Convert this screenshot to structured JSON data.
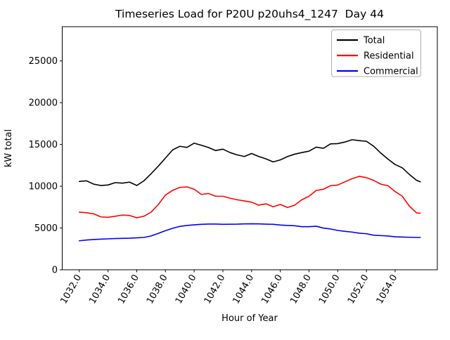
{
  "figure": {
    "background": "#ffffff"
  },
  "chart_data": {
    "type": "line",
    "title": "Timeseries Load for P20U p20uhs4_1247  Day 44",
    "xlabel": "Hour of Year",
    "ylabel": "kW total",
    "grid": false,
    "legend_position": "upper right",
    "xlim": [
      1030.81,
      1056.94
    ],
    "ylim": [
      0,
      29100
    ],
    "x_ticks": [
      1032,
      1034,
      1036,
      1038,
      1040,
      1042,
      1044,
      1046,
      1048,
      1050,
      1052,
      1054
    ],
    "x_tick_labels": [
      "1032.0",
      "1034.0",
      "1036.0",
      "1038.0",
      "1040.0",
      "1042.0",
      "1044.0",
      "1046.0",
      "1048.0",
      "1050.0",
      "1052.0",
      "1054.0"
    ],
    "x_tick_rotation": 60,
    "y_ticks": [
      0,
      5000,
      10000,
      15000,
      20000,
      25000
    ],
    "y_tick_labels": [
      "0",
      "5000",
      "10000",
      "15000",
      "20000",
      "25000"
    ],
    "x": [
      1032.0,
      1032.5,
      1033.0,
      1033.5,
      1034.0,
      1034.5,
      1035.0,
      1035.5,
      1036.0,
      1036.5,
      1037.0,
      1037.5,
      1038.0,
      1038.5,
      1039.0,
      1039.5,
      1040.0,
      1040.5,
      1041.0,
      1041.5,
      1042.0,
      1042.5,
      1043.0,
      1043.5,
      1044.0,
      1044.5,
      1045.0,
      1045.5,
      1046.0,
      1046.5,
      1047.0,
      1047.5,
      1048.0,
      1048.5,
      1049.0,
      1049.5,
      1050.0,
      1050.5,
      1051.0,
      1051.5,
      1052.0,
      1052.5,
      1053.0,
      1053.5,
      1054.0,
      1054.5,
      1055.0,
      1055.5,
      1055.75
    ],
    "series": [
      {
        "name": "Total",
        "color": "#000000",
        "values": [
          10570,
          10650,
          10250,
          10090,
          10150,
          10430,
          10370,
          10490,
          10090,
          10650,
          11500,
          12400,
          13370,
          14350,
          14780,
          14650,
          15150,
          14910,
          14630,
          14270,
          14440,
          14030,
          13750,
          13560,
          13920,
          13560,
          13280,
          12910,
          13150,
          13550,
          13840,
          14030,
          14200,
          14680,
          14540,
          15070,
          15100,
          15290,
          15570,
          15460,
          15380,
          14800,
          13970,
          13250,
          12600,
          12200,
          11400,
          10700,
          10530
        ]
      },
      {
        "name": "Residential",
        "color": "#ff0000",
        "values": [
          6890,
          6830,
          6700,
          6330,
          6280,
          6410,
          6550,
          6500,
          6220,
          6410,
          6890,
          7800,
          8940,
          9500,
          9860,
          9920,
          9640,
          9020,
          9130,
          8800,
          8800,
          8570,
          8380,
          8240,
          8090,
          7730,
          7900,
          7540,
          7820,
          7450,
          7730,
          8380,
          8800,
          9490,
          9640,
          10060,
          10140,
          10530,
          10900,
          11180,
          11030,
          10700,
          10250,
          10060,
          9360,
          8800,
          7600,
          6800,
          6780
        ]
      },
      {
        "name": "Commercial",
        "color": "#0000ff",
        "values": [
          3470,
          3560,
          3620,
          3660,
          3700,
          3740,
          3760,
          3780,
          3820,
          3870,
          4050,
          4350,
          4680,
          4960,
          5190,
          5300,
          5380,
          5440,
          5470,
          5470,
          5440,
          5450,
          5460,
          5490,
          5500,
          5490,
          5460,
          5440,
          5360,
          5300,
          5270,
          5160,
          5160,
          5210,
          4990,
          4880,
          4710,
          4600,
          4510,
          4380,
          4310,
          4140,
          4090,
          4040,
          3950,
          3920,
          3890,
          3870,
          3870
        ]
      }
    ]
  }
}
